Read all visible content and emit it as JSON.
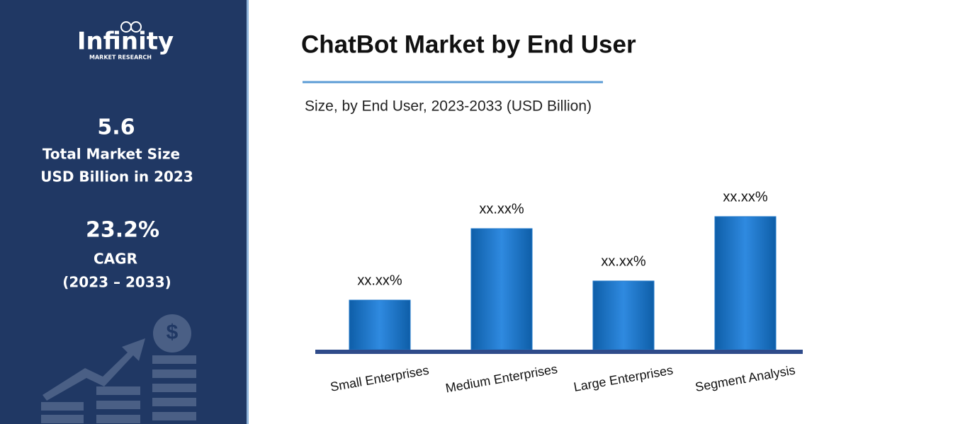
{
  "sidebar": {
    "logo_main": "Infinity",
    "logo_sub": "MARKET RESEARCH",
    "market_size": "5.6",
    "market_size_label_1": "Total Market Size",
    "market_size_label_2": "USD Billion in 2023",
    "cagr": "23.2%",
    "cagr_label": "CAGR",
    "cagr_period": "(2023 – 2033)"
  },
  "chart_data": {
    "type": "bar",
    "title": "ChatBot Market by End User",
    "subtitle": "Size, by End User, 2023-2033 (USD Billion)",
    "categories": [
      "Small Enterprises",
      "Medium Enterprises",
      "Large Enterprises",
      "Segment Analysis"
    ],
    "values": [
      70,
      171,
      97,
      188
    ],
    "value_labels": [
      "xx.xx%",
      "xx.xx%",
      "xx.xx%",
      "xx.xx%"
    ],
    "color": "#1f77c9"
  }
}
